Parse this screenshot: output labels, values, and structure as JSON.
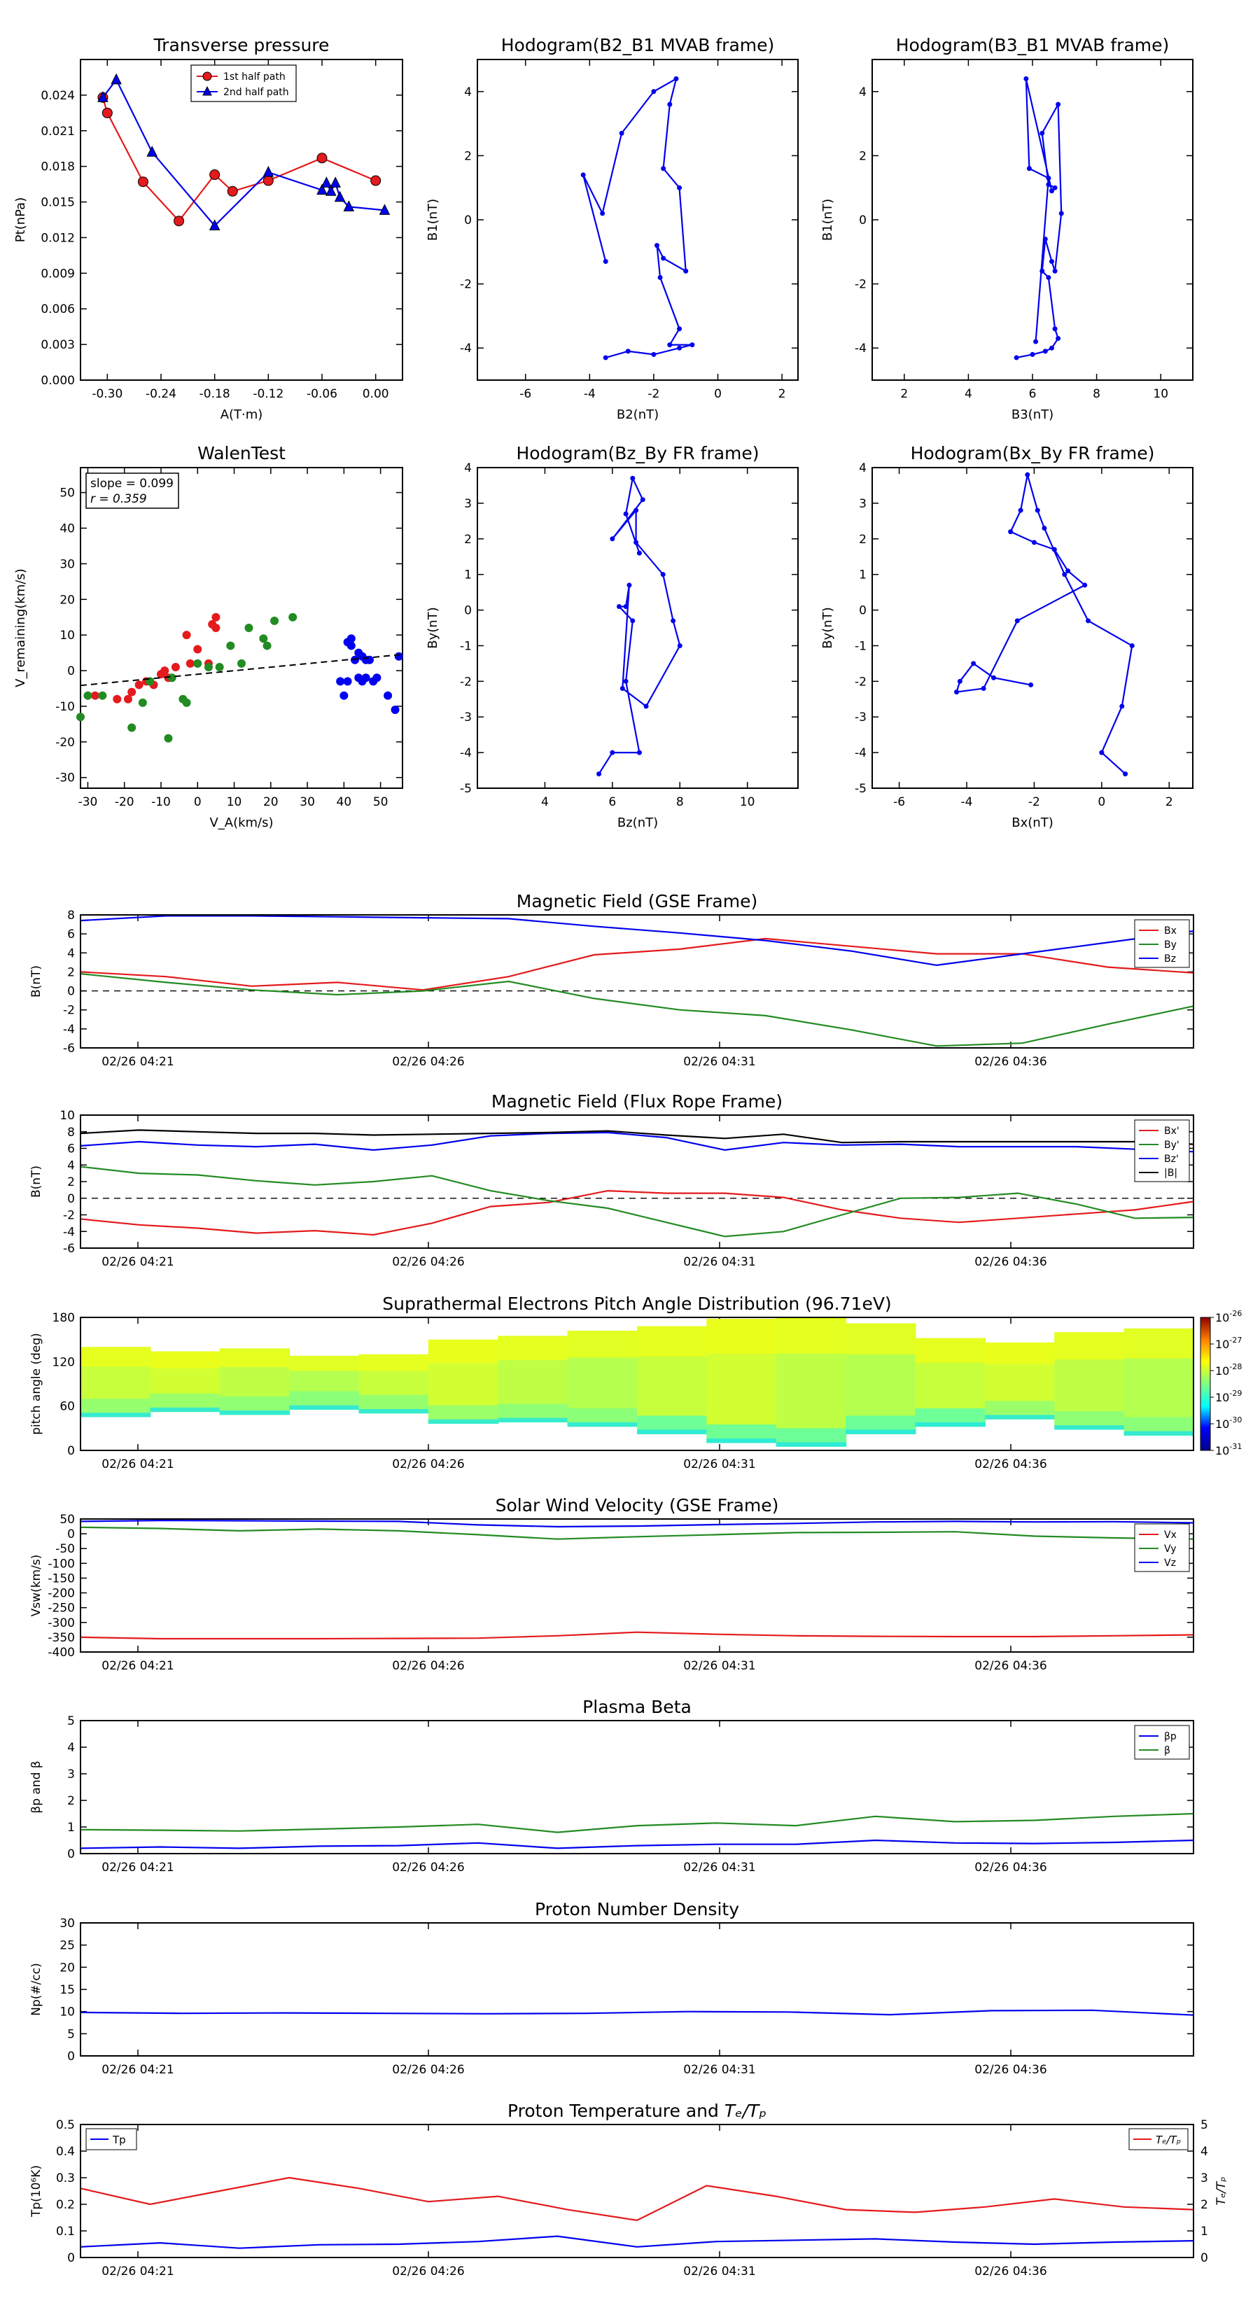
{
  "colors": {
    "red": "#e41a1c",
    "green": "#228b22",
    "blue": "#0000ee",
    "black": "#000000"
  },
  "time_ticks": [
    "02/26 04:21",
    "02/26 04:26",
    "02/26 04:31",
    "02/26 04:36"
  ],
  "chart_data": [
    {
      "id": "pt",
      "type": "line+scatter",
      "title": "Transverse pressure",
      "xlabel": "A(T·m)",
      "ylabel": "Pt(nPa)",
      "xlim": [
        -0.33,
        0.03
      ],
      "ylim": [
        0.0,
        0.027
      ],
      "xticks": [
        -0.3,
        -0.24,
        -0.18,
        -0.12,
        -0.06,
        0.0
      ],
      "xticklabels": [
        "-0.30",
        "-0.24",
        "-0.18",
        "-0.12",
        "-0.06",
        "0.00"
      ],
      "yticks": [
        0.0,
        0.003,
        0.006,
        0.009,
        0.012,
        0.015,
        0.018,
        0.021,
        0.024
      ],
      "yticklabels": [
        "0.000",
        "0.003",
        "0.006",
        "0.009",
        "0.012",
        "0.015",
        "0.018",
        "0.021",
        "0.024"
      ],
      "legend_loc": "top-center",
      "series": [
        {
          "name": "1st half path",
          "marker": "circle",
          "color": "#e41a1c",
          "x": [
            -0.305,
            -0.3,
            -0.26,
            -0.22,
            -0.18,
            -0.16,
            -0.12,
            -0.06,
            0.0
          ],
          "y": [
            0.0238,
            0.0225,
            0.0167,
            0.0134,
            0.0173,
            0.0159,
            0.0168,
            0.0187,
            0.0168
          ]
        },
        {
          "name": "2nd half path",
          "marker": "triangle",
          "color": "#0000ee",
          "x": [
            -0.305,
            -0.29,
            -0.25,
            -0.18,
            -0.12,
            -0.06,
            -0.055,
            -0.05,
            -0.045,
            -0.04,
            -0.03,
            0.01
          ],
          "y": [
            0.0238,
            0.0253,
            0.0192,
            0.013,
            0.0175,
            0.016,
            0.0166,
            0.0159,
            0.0166,
            0.0154,
            0.0146,
            0.0143
          ]
        }
      ]
    },
    {
      "id": "hodo1",
      "type": "line",
      "title": "Hodogram(B2_B1 MVAB frame)",
      "xlabel": "B2(nT)",
      "ylabel": "B1(nT)",
      "xlim": [
        -7.5,
        2.5
      ],
      "ylim": [
        -5,
        5
      ],
      "xticks": [
        -6,
        -4,
        -2,
        0,
        2
      ],
      "yticks": [
        -4,
        -2,
        0,
        2,
        4
      ],
      "series": [
        {
          "color": "#0000ee",
          "x": [
            -3.5,
            -2.8,
            -2.0,
            -1.2,
            -0.8,
            -1.5,
            -1.2,
            -1.8,
            -1.9,
            -1.7,
            -1.0,
            -1.2,
            -1.7,
            -1.5,
            -1.3,
            -2.0,
            -3.0,
            -3.6,
            -4.2,
            -3.5
          ],
          "y": [
            -4.3,
            -4.1,
            -4.2,
            -4.0,
            -3.9,
            -3.9,
            -3.4,
            -1.8,
            -0.8,
            -1.2,
            -1.6,
            1.0,
            1.6,
            3.6,
            4.4,
            4.0,
            2.7,
            0.2,
            1.4,
            -1.3
          ]
        }
      ]
    },
    {
      "id": "hodo2",
      "type": "line",
      "title": "Hodogram(B3_B1 MVAB frame)",
      "xlabel": "B3(nT)",
      "ylabel": "B1(nT)",
      "xlim": [
        1.0,
        11.0
      ],
      "ylim": [
        -5,
        5
      ],
      "xticks": [
        2,
        4,
        6,
        8,
        10
      ],
      "yticks": [
        -4,
        -2,
        0,
        2,
        4
      ],
      "series": [
        {
          "color": "#0000ee",
          "x": [
            5.5,
            6.0,
            6.4,
            6.6,
            6.8,
            6.7,
            6.5,
            6.3,
            6.4,
            6.6,
            6.7,
            6.9,
            6.8,
            6.3,
            6.5,
            6.7,
            6.6,
            5.8,
            5.9,
            6.5,
            6.1
          ],
          "y": [
            -4.3,
            -4.2,
            -4.1,
            -4.0,
            -3.7,
            -3.4,
            -1.8,
            -1.6,
            -0.6,
            -1.3,
            -1.6,
            0.2,
            3.6,
            2.7,
            1.1,
            1.0,
            0.9,
            4.4,
            1.6,
            1.3,
            -3.8
          ]
        }
      ]
    },
    {
      "id": "walen",
      "type": "scatter",
      "title": "WalenTest",
      "xlabel": "V_A(km/s)",
      "ylabel": "V_remaining(km/s)",
      "xlim": [
        -32,
        56
      ],
      "ylim": [
        -33,
        57
      ],
      "xticks": [
        -30,
        -20,
        -10,
        0,
        10,
        20,
        30,
        40,
        50
      ],
      "yticks": [
        -30,
        -20,
        -10,
        0,
        10,
        20,
        30,
        40,
        50
      ],
      "annotation": [
        "slope = 0.099",
        "r = 0.359"
      ],
      "fit_line": {
        "slope": 0.099,
        "intercept": -1.0,
        "style": "dashed"
      },
      "series": [
        {
          "color": "#e41a1c",
          "x": [
            -28,
            -22,
            -19,
            -18,
            -16,
            -14,
            -12,
            -10,
            -8,
            -6,
            -3,
            0,
            3,
            4,
            5,
            5,
            -9,
            -2
          ],
          "y": [
            -7,
            -8,
            -8,
            -6,
            -4,
            -3,
            -4,
            -1,
            -2,
            1,
            10,
            6,
            2,
            13,
            12,
            15,
            0,
            2
          ]
        },
        {
          "color": "#228b22",
          "x": [
            -32,
            -30,
            -26,
            -18,
            -15,
            -13,
            -8,
            -3,
            0,
            6,
            9,
            12,
            14,
            18,
            19,
            21,
            26,
            -4,
            3,
            -7
          ],
          "y": [
            -13,
            -7,
            -7,
            -16,
            -9,
            -3,
            -19,
            -9,
            2,
            1,
            7,
            2,
            12,
            9,
            7,
            14,
            15,
            -8,
            1,
            -2
          ]
        },
        {
          "color": "#0000ee",
          "x": [
            39,
            40,
            41,
            42,
            42,
            43,
            44,
            44,
            45,
            45,
            46,
            47,
            48,
            49,
            52,
            54,
            55,
            46,
            41
          ],
          "y": [
            -3,
            -7,
            8,
            7,
            9,
            3,
            -2,
            5,
            4,
            -3,
            3,
            3,
            -3,
            -2,
            -7,
            -11,
            4,
            -2,
            -3
          ]
        }
      ]
    },
    {
      "id": "hodo3",
      "type": "line",
      "title": "Hodogram(Bz_By FR frame)",
      "xlabel": "Bz(nT)",
      "ylabel": "By(nT)",
      "xlim": [
        2.0,
        11.5
      ],
      "ylim": [
        -5,
        4
      ],
      "xticks": [
        4,
        6,
        8,
        10
      ],
      "yticks": [
        -5,
        -4,
        -3,
        -2,
        -1,
        0,
        1,
        2,
        3,
        4
      ],
      "series": [
        {
          "color": "#0000ee",
          "x": [
            5.6,
            6.0,
            6.8,
            6.4,
            6.6,
            6.2,
            6.4,
            6.5,
            6.3,
            7.0,
            8.0,
            7.8,
            7.5,
            6.7,
            6.7,
            6.0,
            6.9,
            6.6,
            6.4,
            6.8
          ],
          "y": [
            -4.6,
            -4.0,
            -4.0,
            -2.0,
            -0.3,
            0.1,
            0.1,
            0.7,
            -2.2,
            -2.7,
            -1.0,
            -0.3,
            1.0,
            1.9,
            2.8,
            2.0,
            3.1,
            3.7,
            2.7,
            1.6
          ]
        }
      ]
    },
    {
      "id": "hodo4",
      "type": "line",
      "title": "Hodogram(Bx_By FR frame)",
      "xlabel": "Bx(nT)",
      "ylabel": "By(nT)",
      "xlim": [
        -6.8,
        2.7
      ],
      "ylim": [
        -5,
        4
      ],
      "xticks": [
        -6,
        -4,
        -2,
        0,
        2
      ],
      "yticks": [
        -5,
        -4,
        -3,
        -2,
        -1,
        0,
        1,
        2,
        3,
        4
      ],
      "series": [
        {
          "color": "#0000ee",
          "x": [
            0.7,
            0.0,
            0.6,
            0.9,
            -0.4,
            -1.1,
            -1.7,
            -1.9,
            -2.2,
            -2.4,
            -2.7,
            -2.0,
            -1.4,
            -1.0,
            -0.5,
            -2.5,
            -3.5,
            -4.3,
            -4.2,
            -3.8,
            -3.2,
            -2.1
          ],
          "y": [
            -4.6,
            -4.0,
            -2.7,
            -1.0,
            -0.3,
            1.0,
            2.3,
            2.8,
            3.8,
            2.8,
            2.2,
            1.9,
            1.7,
            1.1,
            0.7,
            -0.3,
            -2.2,
            -2.3,
            -2.0,
            -1.5,
            -1.9,
            -2.1
          ]
        }
      ]
    }
  ],
  "timeseries": [
    {
      "id": "bgse",
      "type": "line",
      "title": "Magnetic Field (GSE Frame)",
      "ylabel": "B(nT)",
      "ylim": [
        -6,
        8
      ],
      "yticks": [
        -6,
        -4,
        -2,
        0,
        2,
        4,
        6,
        8
      ],
      "zero_line": true,
      "legend_loc": "right",
      "x": [
        0,
        2,
        4,
        6,
        8,
        10,
        12,
        14,
        16,
        18,
        20,
        22,
        24,
        26
      ],
      "series": [
        {
          "name": "Bx",
          "color": "#e41a1c",
          "values": [
            2.0,
            1.5,
            0.5,
            0.9,
            0.1,
            1.5,
            3.8,
            4.4,
            5.5,
            4.7,
            3.9,
            3.9,
            2.5,
            1.9
          ]
        },
        {
          "name": "By",
          "color": "#228b22",
          "values": [
            1.8,
            0.9,
            0.1,
            -0.4,
            0.0,
            1.0,
            -0.8,
            -2.0,
            -2.6,
            -4.1,
            -5.8,
            -5.5,
            -3.5,
            -1.6
          ]
        },
        {
          "name": "Bz",
          "color": "#0000ee",
          "values": [
            7.4,
            7.9,
            7.9,
            7.8,
            7.7,
            7.6,
            6.8,
            6.1,
            5.3,
            4.2,
            2.7,
            3.9,
            5.1,
            6.3
          ]
        }
      ],
      "tail": [
        {
          "name": "Bx",
          "values": [
            1.4,
            1.9,
            2.3,
            2.7
          ]
        },
        {
          "name": "By",
          "values": [
            -1.6,
            -1.1,
            -2.1,
            -3.6,
            -3.4
          ]
        },
        {
          "name": "Bz",
          "values": [
            6.5,
            6.5,
            6.1,
            4.3
          ]
        }
      ]
    },
    {
      "id": "bfr",
      "type": "line",
      "title": "Magnetic Field (Flux Rope Frame)",
      "ylabel": "B(nT)",
      "ylim": [
        -6,
        10
      ],
      "yticks": [
        -6,
        -4,
        -2,
        0,
        2,
        4,
        6,
        8,
        10
      ],
      "zero_line": true,
      "legend_loc": "right",
      "series": [
        {
          "name": "Bx'",
          "color": "#e41a1c",
          "values": [
            -2.5,
            -3.2,
            -3.6,
            -4.2,
            -3.9,
            -4.4,
            -3.0,
            -1.0,
            -0.5,
            0.9,
            0.6,
            0.6,
            0.1,
            -1.4,
            -2.4,
            -2.9,
            -2.4,
            -1.9,
            -1.4,
            -0.4
          ]
        },
        {
          "name": "By'",
          "color": "#228b22",
          "values": [
            3.8,
            3.0,
            2.8,
            2.1,
            1.6,
            2.0,
            2.7,
            0.9,
            -0.3,
            -1.2,
            -2.9,
            -4.6,
            -4.0,
            -2.0,
            0.0,
            0.1,
            0.6,
            -0.7,
            -2.4,
            -2.3
          ]
        },
        {
          "name": "Bz'",
          "color": "#0000ee",
          "values": [
            6.3,
            6.8,
            6.4,
            6.2,
            6.5,
            5.8,
            6.4,
            7.5,
            7.8,
            7.9,
            7.3,
            5.8,
            6.7,
            6.4,
            6.5,
            6.2,
            6.2,
            6.2,
            5.9,
            5.6
          ]
        },
        {
          "name": "|B|",
          "color": "#000000",
          "values": [
            7.8,
            8.2,
            8.0,
            7.8,
            7.8,
            7.6,
            7.7,
            7.8,
            7.9,
            8.1,
            7.6,
            7.2,
            7.7,
            6.7,
            6.8,
            6.8,
            6.8,
            6.8,
            6.8,
            6.5
          ]
        }
      ]
    },
    {
      "id": "pad",
      "type": "heatmap",
      "title": "Suprathermal Electrons Pitch Angle Distribution (96.71eV)",
      "ylabel": "pitch angle (deg)",
      "ylim": [
        0,
        180
      ],
      "yticks": [
        0,
        60,
        120,
        180
      ],
      "colorbar": {
        "ticks": [
          "10^-31",
          "10^-30",
          "10^-29",
          "10^-28",
          "10^-27",
          "10^-26"
        ],
        "tick_base": "10",
        "tick_exps": [
          "-31",
          "-30",
          "-29",
          "-28",
          "-27",
          "-26"
        ]
      }
    },
    {
      "id": "vsw",
      "type": "line",
      "title": "Solar Wind Velocity (GSE Frame)",
      "ylabel": "Vsw(km/s)",
      "ylim": [
        -400,
        50
      ],
      "yticks": [
        -400,
        -350,
        -300,
        -250,
        -200,
        -150,
        -100,
        -50,
        0,
        50
      ],
      "legend_loc": "right",
      "series": [
        {
          "name": "Vx",
          "color": "#e41a1c",
          "values": [
            -350,
            -355,
            -355,
            -355,
            -354,
            -353,
            -345,
            -333,
            -340,
            -345,
            -347,
            -348,
            -348,
            -345,
            -342
          ]
        },
        {
          "name": "Vy",
          "color": "#228b22",
          "values": [
            22,
            18,
            10,
            16,
            10,
            -3,
            -18,
            -10,
            -3,
            4,
            5,
            7,
            -8,
            -14,
            -18
          ]
        },
        {
          "name": "Vz",
          "color": "#0000ee",
          "values": [
            42,
            45,
            44,
            43,
            42,
            30,
            24,
            26,
            31,
            35,
            40,
            42,
            40,
            41,
            37
          ]
        }
      ]
    },
    {
      "id": "beta",
      "type": "line",
      "title": "Plasma Beta",
      "ylabel": "βp and β",
      "ylim": [
        0,
        5
      ],
      "yticks": [
        0,
        1,
        2,
        3,
        4,
        5
      ],
      "legend_loc": "right",
      "series": [
        {
          "name": "βp",
          "color": "#0000ee",
          "values": [
            0.2,
            0.25,
            0.2,
            0.28,
            0.3,
            0.4,
            0.2,
            0.3,
            0.35,
            0.35,
            0.5,
            0.4,
            0.38,
            0.42,
            0.5
          ]
        },
        {
          "name": "β",
          "color": "#228b22",
          "values": [
            0.9,
            0.88,
            0.85,
            0.92,
            1.0,
            1.1,
            0.8,
            1.05,
            1.15,
            1.05,
            1.4,
            1.2,
            1.25,
            1.4,
            1.5
          ]
        }
      ]
    },
    {
      "id": "np",
      "type": "line",
      "title": "Proton Number Density",
      "ylabel": "Np(#/cc)",
      "ylim": [
        0,
        30
      ],
      "yticks": [
        0,
        5,
        10,
        15,
        20,
        25,
        30
      ],
      "series": [
        {
          "name": "Np",
          "color": "#0000ee",
          "values": [
            9.8,
            9.6,
            9.7,
            9.6,
            9.5,
            9.6,
            10.0,
            9.9,
            9.3,
            10.2,
            10.3,
            9.2
          ]
        }
      ]
    },
    {
      "id": "tp",
      "type": "line",
      "title": "Proton Temperature and",
      "title_math": "Tₑ/Tₚ",
      "ylabel": "Tp(10⁶K)",
      "ylim": [
        0,
        0.5
      ],
      "yticks": [
        0.0,
        0.1,
        0.2,
        0.3,
        0.4,
        0.5
      ],
      "y2label": "Tₑ/Tₚ",
      "y2lim": [
        0,
        5
      ],
      "y2ticks": [
        0,
        1,
        2,
        3,
        4,
        5
      ],
      "legend_left": "Tp",
      "legend_right": "Tₑ/Tₚ",
      "series": [
        {
          "name": "Tp",
          "color": "#0000ee",
          "axis": "left",
          "values": [
            0.04,
            0.055,
            0.035,
            0.048,
            0.05,
            0.06,
            0.08,
            0.04,
            0.06,
            0.065,
            0.07,
            0.058,
            0.05,
            0.058,
            0.063
          ]
        },
        {
          "name": "Te/Tp",
          "color": "#e41a1c",
          "axis": "right",
          "values": [
            2.6,
            2.0,
            2.5,
            3.0,
            2.6,
            2.1,
            2.3,
            1.8,
            1.4,
            2.7,
            2.3,
            1.8,
            1.7,
            1.9,
            2.2,
            1.9,
            1.8
          ]
        }
      ]
    }
  ]
}
